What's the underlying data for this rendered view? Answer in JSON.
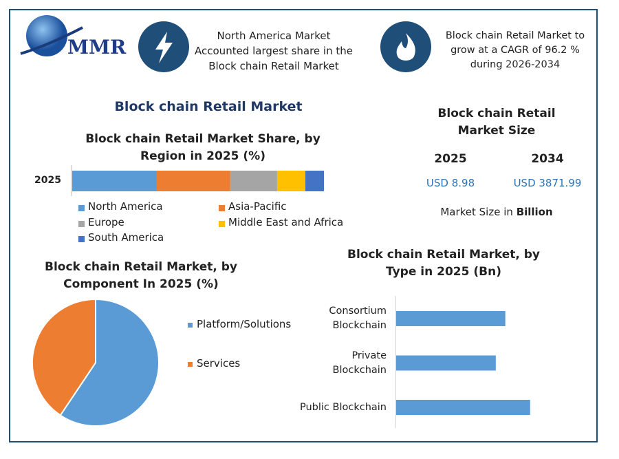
{
  "logo": "MMR",
  "highlights": [
    "North America Market Accounted largest share in the Block chain Retail Market",
    "Block chain Retail Market to grow at a CAGR of 96.2 % during 2026-2034"
  ],
  "main_title": "Block chain Retail Market",
  "market_size": {
    "title": "Block chain Retail Market Size",
    "years": [
      "2025",
      "2034"
    ],
    "values": [
      "USD 8.98",
      "USD 3871.99"
    ],
    "unit_prefix": "Market Size in",
    "unit": "Billion"
  },
  "chart_data": [
    {
      "type": "stacked_bar",
      "title": "Block chain Retail Market Share, by Region in 2025 (%)",
      "categories": [
        "2025"
      ],
      "xlim": [
        0,
        100
      ],
      "legend": "bottom",
      "series": [
        {
          "name": "North America",
          "color": "#5b9bd5",
          "values": [
            33.6
          ]
        },
        {
          "name": "Asia-Pacific",
          "color": "#ed7d31",
          "values": [
            29.2
          ]
        },
        {
          "name": "Europe",
          "color": "#a5a5a5",
          "values": [
            18.6
          ]
        },
        {
          "name": "Middle East and Africa",
          "color": "#ffc000",
          "values": [
            11.2
          ]
        },
        {
          "name": "South America",
          "color": "#4472c4",
          "values": [
            7.4
          ]
        }
      ]
    },
    {
      "type": "pie",
      "title": "Block chain Retail Market, by Component In 2025 (%)",
      "categories": [
        "Platform/Solutions",
        "Services"
      ],
      "values": [
        59.4,
        40.6
      ],
      "colors": [
        "#5b9bd5",
        "#ed7d31"
      ],
      "legend": "right"
    },
    {
      "type": "hbar",
      "title": "Block chain Retail Market, by Type in 2025 (Bn)",
      "categories": [
        "Consortium Blockchain",
        "Private Blockchain",
        "Public Blockchain"
      ],
      "values": [
        2.86,
        2.61,
        3.51
      ],
      "color": "#5b9bd5",
      "xlim": [
        0,
        4
      ]
    }
  ]
}
